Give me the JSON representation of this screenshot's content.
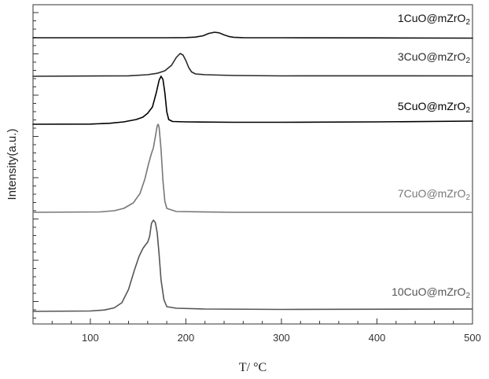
{
  "chart_data": {
    "type": "line",
    "xlabel": "T/ °C",
    "ylabel": "Intensity(a.u.)",
    "xlim": [
      40,
      500
    ],
    "xticks": [
      100,
      200,
      300,
      400,
      500
    ],
    "yticks_labeled": false,
    "grid": false,
    "legend": "labels-above-each-curve-right",
    "series": [
      {
        "name": "1CuO@mZrO2",
        "label_main": "1CuO@mZrO",
        "label_sub": "2",
        "color": "#111111",
        "points": [
          [
            40,
            0.0
          ],
          [
            180,
            0.0
          ],
          [
            200,
            0.2
          ],
          [
            210,
            0.8
          ],
          [
            218,
            2.5
          ],
          [
            224,
            5.5
          ],
          [
            230,
            7.0
          ],
          [
            235,
            6.2
          ],
          [
            240,
            3.6
          ],
          [
            245,
            1.6
          ],
          [
            250,
            0.6
          ],
          [
            260,
            0.1
          ],
          [
            300,
            0.0
          ],
          [
            400,
            -0.2
          ],
          [
            500,
            -0.5
          ]
        ]
      },
      {
        "name": "3CuO@mZrO2",
        "label_main": "3CuO@mZrO",
        "label_sub": "2",
        "color": "#2a2a2a",
        "points": [
          [
            40,
            0.0
          ],
          [
            140,
            0.6
          ],
          [
            160,
            2.0
          ],
          [
            170,
            3.8
          ],
          [
            178,
            7.0
          ],
          [
            185,
            14.0
          ],
          [
            190,
            24.0
          ],
          [
            194,
            29.0
          ],
          [
            197,
            27.0
          ],
          [
            200,
            20.0
          ],
          [
            203,
            11.0
          ],
          [
            206,
            5.5
          ],
          [
            210,
            3.0
          ],
          [
            220,
            2.0
          ],
          [
            250,
            1.0
          ],
          [
            300,
            0.5
          ],
          [
            400,
            0.6
          ],
          [
            500,
            0.5
          ]
        ]
      },
      {
        "name": "5CuO@mZrO2",
        "label_main": "5CuO@mZrO",
        "label_sub": "2",
        "color": "#000000",
        "points": [
          [
            40,
            0.0
          ],
          [
            100,
            0.2
          ],
          [
            120,
            1.2
          ],
          [
            135,
            3.0
          ],
          [
            148,
            6.0
          ],
          [
            155,
            9.0
          ],
          [
            160,
            14.0
          ],
          [
            165,
            22.0
          ],
          [
            169,
            40.0
          ],
          [
            172,
            56.0
          ],
          [
            174,
            61.0
          ],
          [
            176,
            57.0
          ],
          [
            178,
            40.0
          ],
          [
            180,
            16.0
          ],
          [
            182,
            6.0
          ],
          [
            186,
            3.5
          ],
          [
            200,
            3.0
          ],
          [
            250,
            2.5
          ],
          [
            300,
            2.5
          ],
          [
            400,
            3.0
          ],
          [
            500,
            4.0
          ]
        ]
      },
      {
        "name": "7CuO@mZrO2",
        "label_main": "7CuO@mZrO",
        "label_sub": "2",
        "color": "#777777",
        "points": [
          [
            40,
            0.0
          ],
          [
            110,
            0.5
          ],
          [
            125,
            2.0
          ],
          [
            135,
            5.0
          ],
          [
            145,
            12.0
          ],
          [
            152,
            24.0
          ],
          [
            157,
            42.0
          ],
          [
            161,
            62.0
          ],
          [
            164,
            75.0
          ],
          [
            166,
            82.0
          ],
          [
            168,
            96.0
          ],
          [
            170,
            110.0
          ],
          [
            171,
            112.0
          ],
          [
            172,
            108.0
          ],
          [
            174,
            80.0
          ],
          [
            176,
            40.0
          ],
          [
            178,
            14.0
          ],
          [
            180,
            5.0
          ],
          [
            190,
            1.0
          ],
          [
            250,
            0.0
          ],
          [
            500,
            0.0
          ]
        ]
      },
      {
        "name": "10CuO@mZrO2",
        "label_main": "10CuO@mZrO",
        "label_sub": "2",
        "color": "#555555",
        "points": [
          [
            40,
            0.0
          ],
          [
            100,
            0.5
          ],
          [
            115,
            1.8
          ],
          [
            125,
            4.5
          ],
          [
            133,
            11.0
          ],
          [
            140,
            28.0
          ],
          [
            146,
            52.0
          ],
          [
            151,
            70.0
          ],
          [
            155,
            80.0
          ],
          [
            158,
            85.0
          ],
          [
            160,
            88.0
          ],
          [
            162,
            95.0
          ],
          [
            164,
            112.0
          ],
          [
            166,
            116.0
          ],
          [
            168,
            113.0
          ],
          [
            170,
            100.0
          ],
          [
            172,
            72.0
          ],
          [
            174,
            40.0
          ],
          [
            177,
            15.0
          ],
          [
            180,
            6.0
          ],
          [
            190,
            4.0
          ],
          [
            220,
            3.0
          ],
          [
            300,
            2.5
          ],
          [
            500,
            3.0
          ]
        ]
      }
    ]
  }
}
